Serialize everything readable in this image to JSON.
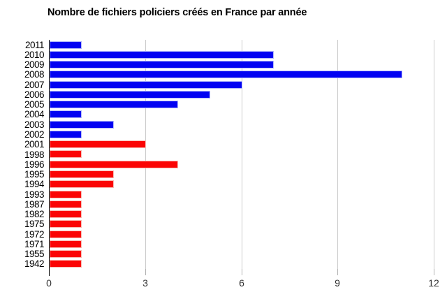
{
  "chart": {
    "title": "Nombre de fichiers policiers créés en France par année"
  },
  "chart_data": {
    "type": "bar",
    "orientation": "horizontal",
    "title": "Nombre de fichiers policiers créés en France par année",
    "categories": [
      "2011",
      "2010",
      "2009",
      "2008",
      "2007",
      "2006",
      "2005",
      "2004",
      "2003",
      "2002",
      "2001",
      "1998",
      "1996",
      "1995",
      "1994",
      "1993",
      "1987",
      "1982",
      "1975",
      "1972",
      "1971",
      "1955",
      "1942"
    ],
    "values": [
      1,
      7,
      7,
      11,
      6,
      5,
      4,
      1,
      2,
      1,
      3,
      1,
      4,
      2,
      2,
      1,
      1,
      1,
      1,
      1,
      1,
      1,
      1
    ],
    "bar_colors": [
      "blue",
      "blue",
      "blue",
      "blue",
      "blue",
      "blue",
      "blue",
      "blue",
      "blue",
      "blue",
      "red",
      "red",
      "red",
      "red",
      "red",
      "red",
      "red",
      "red",
      "red",
      "red",
      "red",
      "red",
      "red"
    ],
    "colors": {
      "blue": "#0202f2",
      "blue_border": "#b0b6f8",
      "red": "#fb0505",
      "red_border": "#f8b8b0",
      "axis": "#000000",
      "gridline": "#cccccc",
      "tick": "#b3b3b3",
      "tick_text": "#333333"
    },
    "xlabel": "",
    "ylabel": "",
    "x_ticks": [
      0,
      3,
      6,
      9,
      12
    ],
    "xlim": [
      0,
      12
    ],
    "grid": "vertical-only",
    "legend": "none"
  }
}
